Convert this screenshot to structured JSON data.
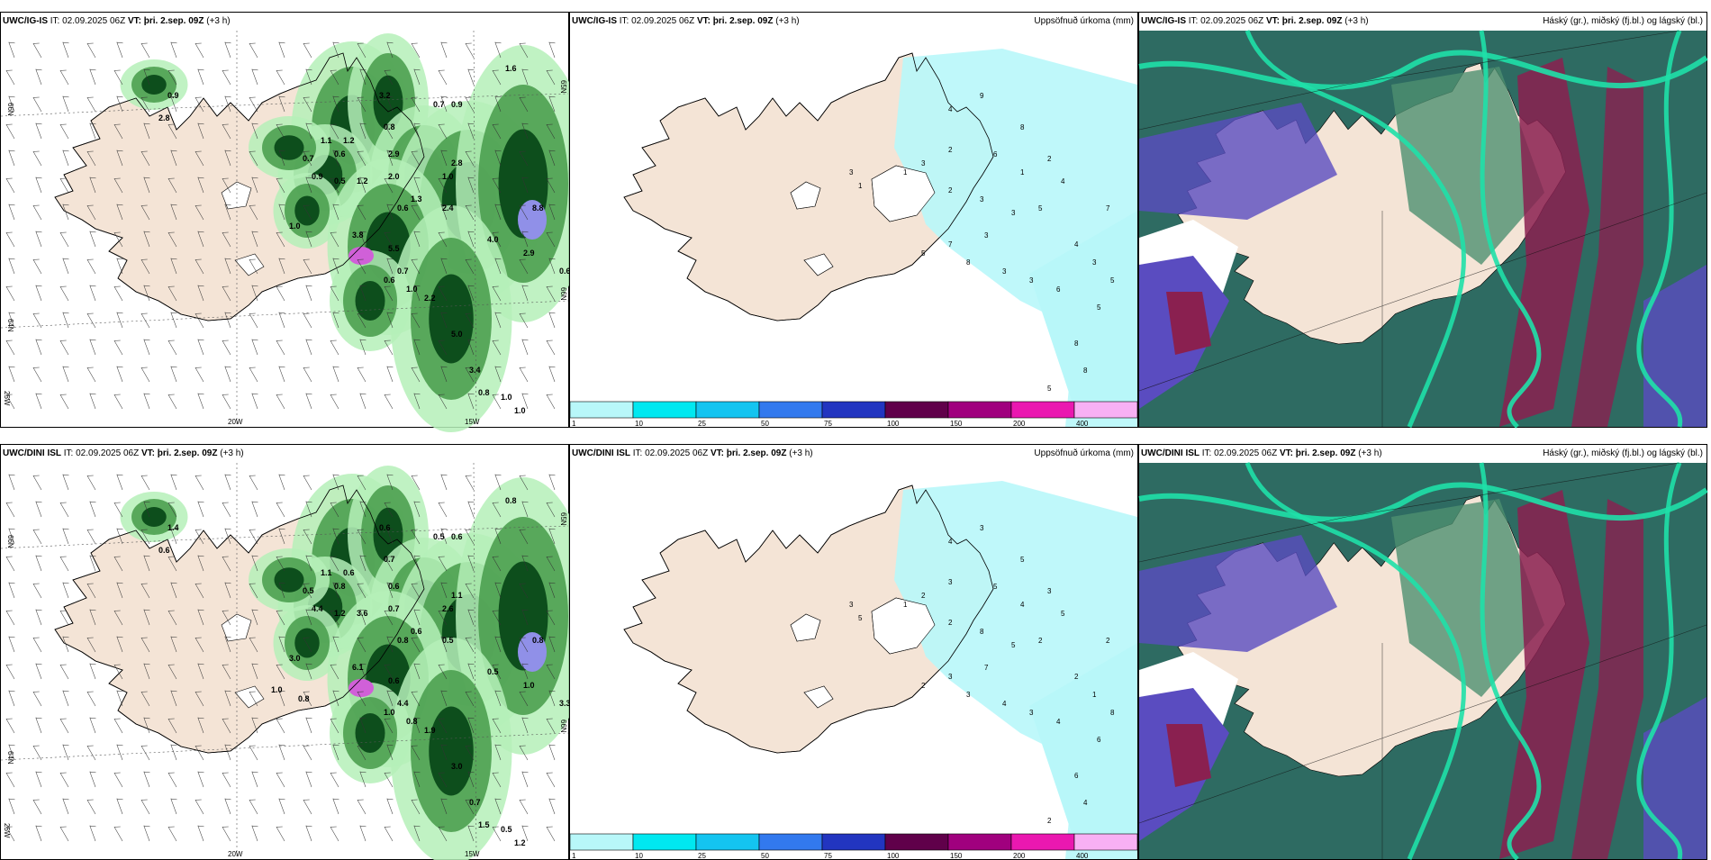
{
  "rows": [
    {
      "model": "UWC/IG-IS",
      "it_label": "IT:",
      "it": "02.09.2025 06Z",
      "vt_label": "VT:",
      "vt": "þri. 2.sep. 09Z",
      "lead": "(+3 h)",
      "precip_title": "Uppsöfnuð úrkoma (mm)",
      "cloud_title": "Háský (gr.), miðský (fj.bl.) og lágský (bl.)",
      "lat_labels": [
        "66N",
        "64N",
        "65N",
        "66N"
      ],
      "lon_labels": [
        "20W",
        "15W",
        "25W"
      ],
      "precip_values": [
        "0.9",
        "2.8",
        "3.2",
        "0.8",
        "0.7",
        "0.9",
        "1.6",
        "1.1",
        "1.2",
        "0.6",
        "0.7",
        "0.9",
        "0.5",
        "1.2",
        "2.9",
        "2.0",
        "1.0",
        "2.8",
        "0.6",
        "1.3",
        "2.4",
        "8.8",
        "1.0",
        "3.8",
        "5.5",
        "4.0",
        "2.9",
        "0.6",
        "0.7",
        "0.6",
        "1.0",
        "2.2",
        "5.0",
        "3.4",
        "0.8",
        "1.0",
        "1.0"
      ],
      "accum_values": [
        "4",
        "9",
        "8",
        "6",
        "2",
        "3",
        "1",
        "2",
        "3",
        "1",
        "2",
        "4",
        "5",
        "3",
        "3",
        "7",
        "5",
        "8",
        "3",
        "3",
        "6",
        "4",
        "3",
        "5",
        "7",
        "5",
        "8",
        "8",
        "5",
        "3",
        "1"
      ]
    },
    {
      "model": "UWC/DINI ISL",
      "it_label": "IT:",
      "it": "02.09.2025 06Z",
      "vt_label": "VT:",
      "vt": "þri. 2.sep. 09Z",
      "lead": "(+3 h)",
      "precip_title": "Uppsöfnuð úrkoma (mm)",
      "cloud_title": "Háský (gr.), miðský (fj.bl.) og lágský (bl.)",
      "lat_labels": [
        "66N",
        "64N",
        "65N",
        "66N"
      ],
      "lon_labels": [
        "20W",
        "15W",
        "25W"
      ],
      "precip_values": [
        "1.4",
        "0.6",
        "0.6",
        "0.7",
        "0.5",
        "0.6",
        "0.8",
        "1.1",
        "0.6",
        "0.8",
        "0.5",
        "4.4",
        "1.2",
        "3.6",
        "0.6",
        "0.7",
        "2.6",
        "1.1",
        "0.8",
        "0.6",
        "0.5",
        "0.8",
        "3.0",
        "6.1",
        "0.6",
        "0.5",
        "1.0",
        "3.3",
        "4.4",
        "1.0",
        "0.8",
        "1.9",
        "3.0",
        "0.7",
        "1.5",
        "0.5",
        "1.2",
        "1.0",
        "0.8"
      ],
      "accum_values": [
        "4",
        "3",
        "5",
        "5",
        "3",
        "2",
        "1",
        "2",
        "8",
        "4",
        "3",
        "5",
        "2",
        "5",
        "7",
        "3",
        "2",
        "3",
        "4",
        "3",
        "4",
        "2",
        "1",
        "8",
        "2",
        "6",
        "6",
        "4",
        "2",
        "3",
        "5"
      ]
    }
  ],
  "colorbar": {
    "ticks": [
      "1",
      "10",
      "25",
      "50",
      "75",
      "100",
      "150",
      "200",
      "400"
    ],
    "colors": [
      "#b8f7f9",
      "#00e8f0",
      "#14c4f0",
      "#3279ee",
      "#2235c0",
      "#60004a",
      "#a0007e",
      "#ea18b0",
      "#f8b0f4"
    ]
  },
  "map_colors": {
    "land": "#f4e4d6",
    "precip_light": "#b5f0b8",
    "precip_mid": "#4ca050",
    "precip_dark": "#0d4e1c",
    "precip_high": "#d060d8",
    "accum": "#b8f7f9",
    "cloud_high": "#2e6b62",
    "cloud_mid": "#8a2050",
    "cloud_low": "#5a4cc0",
    "cloud_edge": "#1fe0a8"
  }
}
